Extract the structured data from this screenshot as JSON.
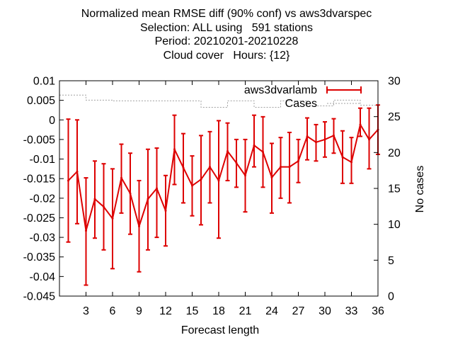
{
  "chart_data": {
    "type": "line",
    "title_lines": [
      "Normalized mean RMSE diff (90% conf) vs aws3dvarspec",
      "Selection: ALL using   591 stations",
      "Period: 20210201-20210228",
      "Cloud cover   Hours: {12}"
    ],
    "xlabel": "Forecast length",
    "ylabel": "",
    "y2label": "No cases",
    "xlim": [
      0,
      36
    ],
    "ylim": [
      -0.045,
      0.01
    ],
    "y2lim": [
      0,
      30
    ],
    "xticks": [
      3,
      6,
      9,
      12,
      15,
      18,
      21,
      24,
      27,
      30,
      33,
      36
    ],
    "yticks": [
      0.01,
      0.005,
      0,
      -0.005,
      -0.01,
      -0.015,
      -0.02,
      -0.025,
      -0.03,
      -0.035,
      -0.04,
      -0.045
    ],
    "ytick_labels": [
      "0.01",
      "0.005",
      "0",
      "-0.005",
      "-0.01",
      "-0.015",
      "-0.02",
      "-0.025",
      "-0.03",
      "-0.035",
      "-0.04",
      "-0.045"
    ],
    "y2ticks": [
      0,
      5,
      10,
      15,
      20,
      25,
      30
    ],
    "y2tick_labels": [
      "0",
      "5",
      "10",
      "15",
      "20",
      "25",
      "30"
    ],
    "legend_position": "top-right",
    "grid": false,
    "series": [
      {
        "name": "aws3dvarlamb",
        "color": "#dd0000",
        "style": "line-errorbars",
        "x": [
          1,
          2,
          3,
          4,
          5,
          6,
          7,
          8,
          9,
          10,
          11,
          12,
          13,
          14,
          15,
          16,
          17,
          18,
          19,
          20,
          21,
          22,
          23,
          24,
          25,
          26,
          27,
          28,
          29,
          30,
          31,
          32,
          33,
          34,
          35,
          36
        ],
        "y": [
          -0.0155,
          -0.0132,
          -0.0283,
          -0.0202,
          -0.0222,
          -0.0252,
          -0.0148,
          -0.0188,
          -0.0272,
          -0.0202,
          -0.0175,
          -0.0232,
          -0.0075,
          -0.0122,
          -0.0168,
          -0.0152,
          -0.012,
          -0.0155,
          -0.008,
          -0.011,
          -0.0142,
          -0.0065,
          -0.0082,
          -0.0147,
          -0.012,
          -0.012,
          -0.0105,
          -0.0042,
          -0.0057,
          -0.005,
          -0.004,
          -0.0095,
          -0.0108,
          -0.0012,
          -0.005,
          -0.0025
        ],
        "ylow": [
          -0.0312,
          -0.0265,
          -0.0422,
          -0.0302,
          -0.0332,
          -0.038,
          -0.0238,
          -0.0292,
          -0.0388,
          -0.0332,
          -0.03,
          -0.0322,
          -0.0165,
          -0.0212,
          -0.0245,
          -0.0268,
          -0.0212,
          -0.0302,
          -0.0155,
          -0.0172,
          -0.0235,
          -0.012,
          -0.0172,
          -0.0238,
          -0.02,
          -0.0212,
          -0.016,
          -0.0102,
          -0.0105,
          -0.0095,
          -0.0085,
          -0.0162,
          -0.0162,
          -0.0042,
          -0.0125,
          -0.0088
        ],
        "yhigh": [
          0.0002,
          0.0,
          -0.0148,
          -0.0105,
          -0.0112,
          -0.0125,
          -0.0062,
          -0.0085,
          -0.0155,
          -0.0075,
          -0.0072,
          -0.0142,
          0.0012,
          -0.0035,
          -0.0092,
          -0.004,
          -0.003,
          -0.0002,
          -0.0008,
          -0.005,
          -0.005,
          0.0012,
          0.0008,
          -0.006,
          -0.0045,
          -0.0032,
          -0.005,
          0.0005,
          -0.0012,
          -0.0005,
          0.0003,
          -0.0028,
          -0.0045,
          0.003,
          0.003,
          0.0038
        ]
      },
      {
        "name": "Cases",
        "color": "#a0a0a0",
        "style": "dashed-steps",
        "axis": "y2",
        "x": [
          0,
          1,
          2,
          3,
          4,
          5,
          6,
          7,
          8,
          9,
          10,
          11,
          12,
          13,
          14,
          15,
          16,
          17,
          18,
          19,
          20,
          21,
          22,
          23,
          24,
          25,
          26,
          27,
          28,
          29,
          30,
          31,
          32,
          33,
          34,
          35,
          36
        ],
        "y": [
          28,
          28,
          28,
          27.3,
          27.3,
          27.3,
          27.2,
          27.2,
          27.2,
          27.2,
          27.2,
          27.2,
          27.2,
          27.2,
          27.2,
          27.2,
          26.3,
          26.3,
          26.3,
          27.2,
          27.2,
          27.2,
          26.3,
          26.3,
          26.3,
          27.2,
          27.2,
          27.2,
          26.5,
          26.5,
          26.5,
          27.3,
          27.3,
          27.3,
          26.6,
          26.6,
          26.6
        ]
      }
    ]
  }
}
